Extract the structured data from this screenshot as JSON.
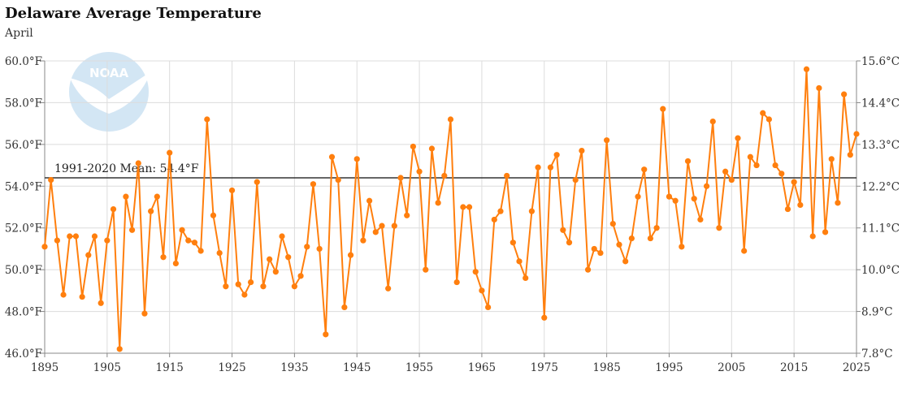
{
  "title": "Delaware Average Temperature",
  "subtitle": "April",
  "logo_text": "NOAA",
  "chart_data": {
    "type": "line",
    "title": "Delaware Average Temperature",
    "subtitle": "April",
    "x": [
      1895,
      1896,
      1897,
      1898,
      1899,
      1900,
      1901,
      1902,
      1903,
      1904,
      1905,
      1906,
      1907,
      1908,
      1909,
      1910,
      1911,
      1912,
      1913,
      1914,
      1915,
      1916,
      1917,
      1918,
      1919,
      1920,
      1921,
      1922,
      1923,
      1924,
      1925,
      1926,
      1927,
      1928,
      1929,
      1930,
      1931,
      1932,
      1933,
      1934,
      1935,
      1936,
      1937,
      1938,
      1939,
      1940,
      1941,
      1942,
      1943,
      1944,
      1945,
      1946,
      1947,
      1948,
      1949,
      1950,
      1951,
      1952,
      1953,
      1954,
      1955,
      1956,
      1957,
      1958,
      1959,
      1960,
      1961,
      1962,
      1963,
      1964,
      1965,
      1966,
      1967,
      1968,
      1969,
      1970,
      1971,
      1972,
      1973,
      1974,
      1975,
      1976,
      1977,
      1978,
      1979,
      1980,
      1981,
      1982,
      1983,
      1984,
      1985,
      1986,
      1987,
      1988,
      1989,
      1990,
      1991,
      1992,
      1993,
      1994,
      1995,
      1996,
      1997,
      1998,
      1999,
      2000,
      2001,
      2002,
      2003,
      2004,
      2005,
      2006,
      2007,
      2008,
      2009,
      2010,
      2011,
      2012,
      2013,
      2014,
      2015,
      2016,
      2017,
      2018,
      2019,
      2020,
      2021,
      2022,
      2023,
      2024,
      2025
    ],
    "series": [
      {
        "color": "#ff7f0e",
        "values": [
          51.1,
          54.3,
          51.4,
          48.8,
          51.6,
          51.6,
          48.7,
          50.7,
          51.6,
          48.4,
          51.4,
          52.9,
          46.2,
          53.5,
          51.9,
          55.1,
          47.9,
          52.8,
          53.5,
          50.6,
          55.6,
          50.3,
          51.9,
          51.4,
          51.3,
          50.9,
          57.2,
          52.6,
          50.8,
          49.2,
          53.8,
          49.3,
          48.8,
          49.4,
          54.2,
          49.2,
          50.5,
          49.9,
          51.6,
          50.6,
          49.2,
          49.7,
          51.1,
          54.1,
          51.0,
          46.9,
          55.4,
          54.3,
          48.2,
          50.7,
          55.3,
          51.4,
          53.3,
          51.8,
          52.1,
          49.1,
          52.1,
          54.4,
          52.6,
          55.9,
          54.7,
          50.0,
          55.8,
          53.2,
          54.5,
          57.2,
          49.4,
          53.0,
          53.0,
          49.9,
          49.0,
          48.2,
          52.4,
          52.8,
          54.5,
          51.3,
          50.4,
          49.6,
          52.8,
          54.9,
          47.7,
          54.9,
          55.5,
          51.9,
          51.3,
          54.3,
          55.7,
          50.0,
          51.0,
          50.8,
          56.2,
          52.2,
          51.2,
          50.4,
          51.5,
          53.5,
          54.8,
          51.5,
          52.0,
          57.7,
          53.5,
          53.3,
          51.1,
          55.2,
          53.4,
          52.4,
          54.0,
          57.1,
          52.0,
          54.7,
          54.3,
          56.3,
          50.9,
          55.4,
          55.0,
          57.5,
          57.2,
          55.0,
          54.6,
          52.9,
          54.2,
          53.1,
          59.6,
          51.6,
          58.7,
          51.8,
          55.3,
          53.2,
          58.4,
          55.5,
          56.5
        ]
      }
    ],
    "xlim": [
      1895,
      2025
    ],
    "ylim": [
      46,
      60
    ],
    "x_ticks": [
      "1895",
      "1905",
      "1915",
      "1925",
      "1935",
      "1945",
      "1955",
      "1965",
      "1975",
      "1985",
      "1995",
      "2005",
      "2015",
      "2025"
    ],
    "y_ticks": [
      "46.0°F",
      "48.0°F",
      "50.0°F",
      "52.0°F",
      "54.0°F",
      "56.0°F",
      "58.0°F",
      "60.0°F"
    ],
    "y2_ticks": [
      "7.8°C",
      "8.9°C",
      "10.0°C",
      "11.1°C",
      "12.2°C",
      "13.3°C",
      "14.4°C",
      "15.6°C"
    ],
    "grid": true,
    "mean_line": {
      "value": 54.4,
      "label": "1991-2020 Mean: 54.4°F",
      "color": "#333333"
    }
  }
}
